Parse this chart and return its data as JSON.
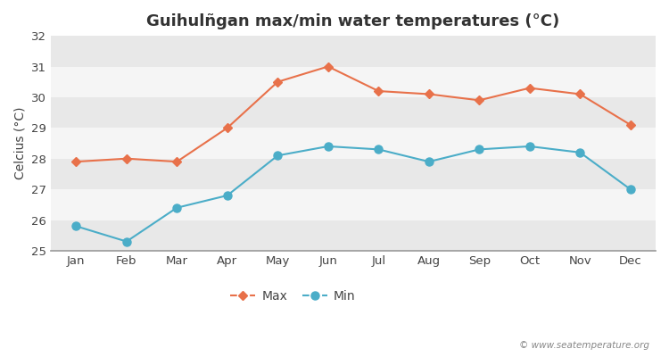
{
  "title": "Guihulñgan max/min water temperatures (°C)",
  "ylabel": "Celcius (°C)",
  "months": [
    "Jan",
    "Feb",
    "Mar",
    "Apr",
    "May",
    "Jun",
    "Jul",
    "Aug",
    "Sep",
    "Oct",
    "Nov",
    "Dec"
  ],
  "max_temps": [
    27.9,
    28.0,
    27.9,
    29.0,
    30.5,
    31.0,
    30.2,
    30.1,
    29.9,
    30.3,
    30.1,
    29.1
  ],
  "min_temps": [
    25.8,
    25.3,
    26.4,
    26.8,
    28.1,
    28.4,
    28.3,
    27.9,
    28.3,
    28.4,
    28.2,
    27.0
  ],
  "max_color": "#e8714a",
  "min_color": "#4badc8",
  "ylim": [
    25,
    32
  ],
  "yticks": [
    25,
    26,
    27,
    28,
    29,
    30,
    31,
    32
  ],
  "band_colors": [
    "#e8e8e8",
    "#f5f5f5"
  ],
  "outer_bg": "#ffffff",
  "plot_bg": "#f0f0f0",
  "title_fontsize": 13,
  "label_fontsize": 10,
  "tick_fontsize": 9.5,
  "legend_fontsize": 10,
  "watermark": "© www.seatemperature.org"
}
